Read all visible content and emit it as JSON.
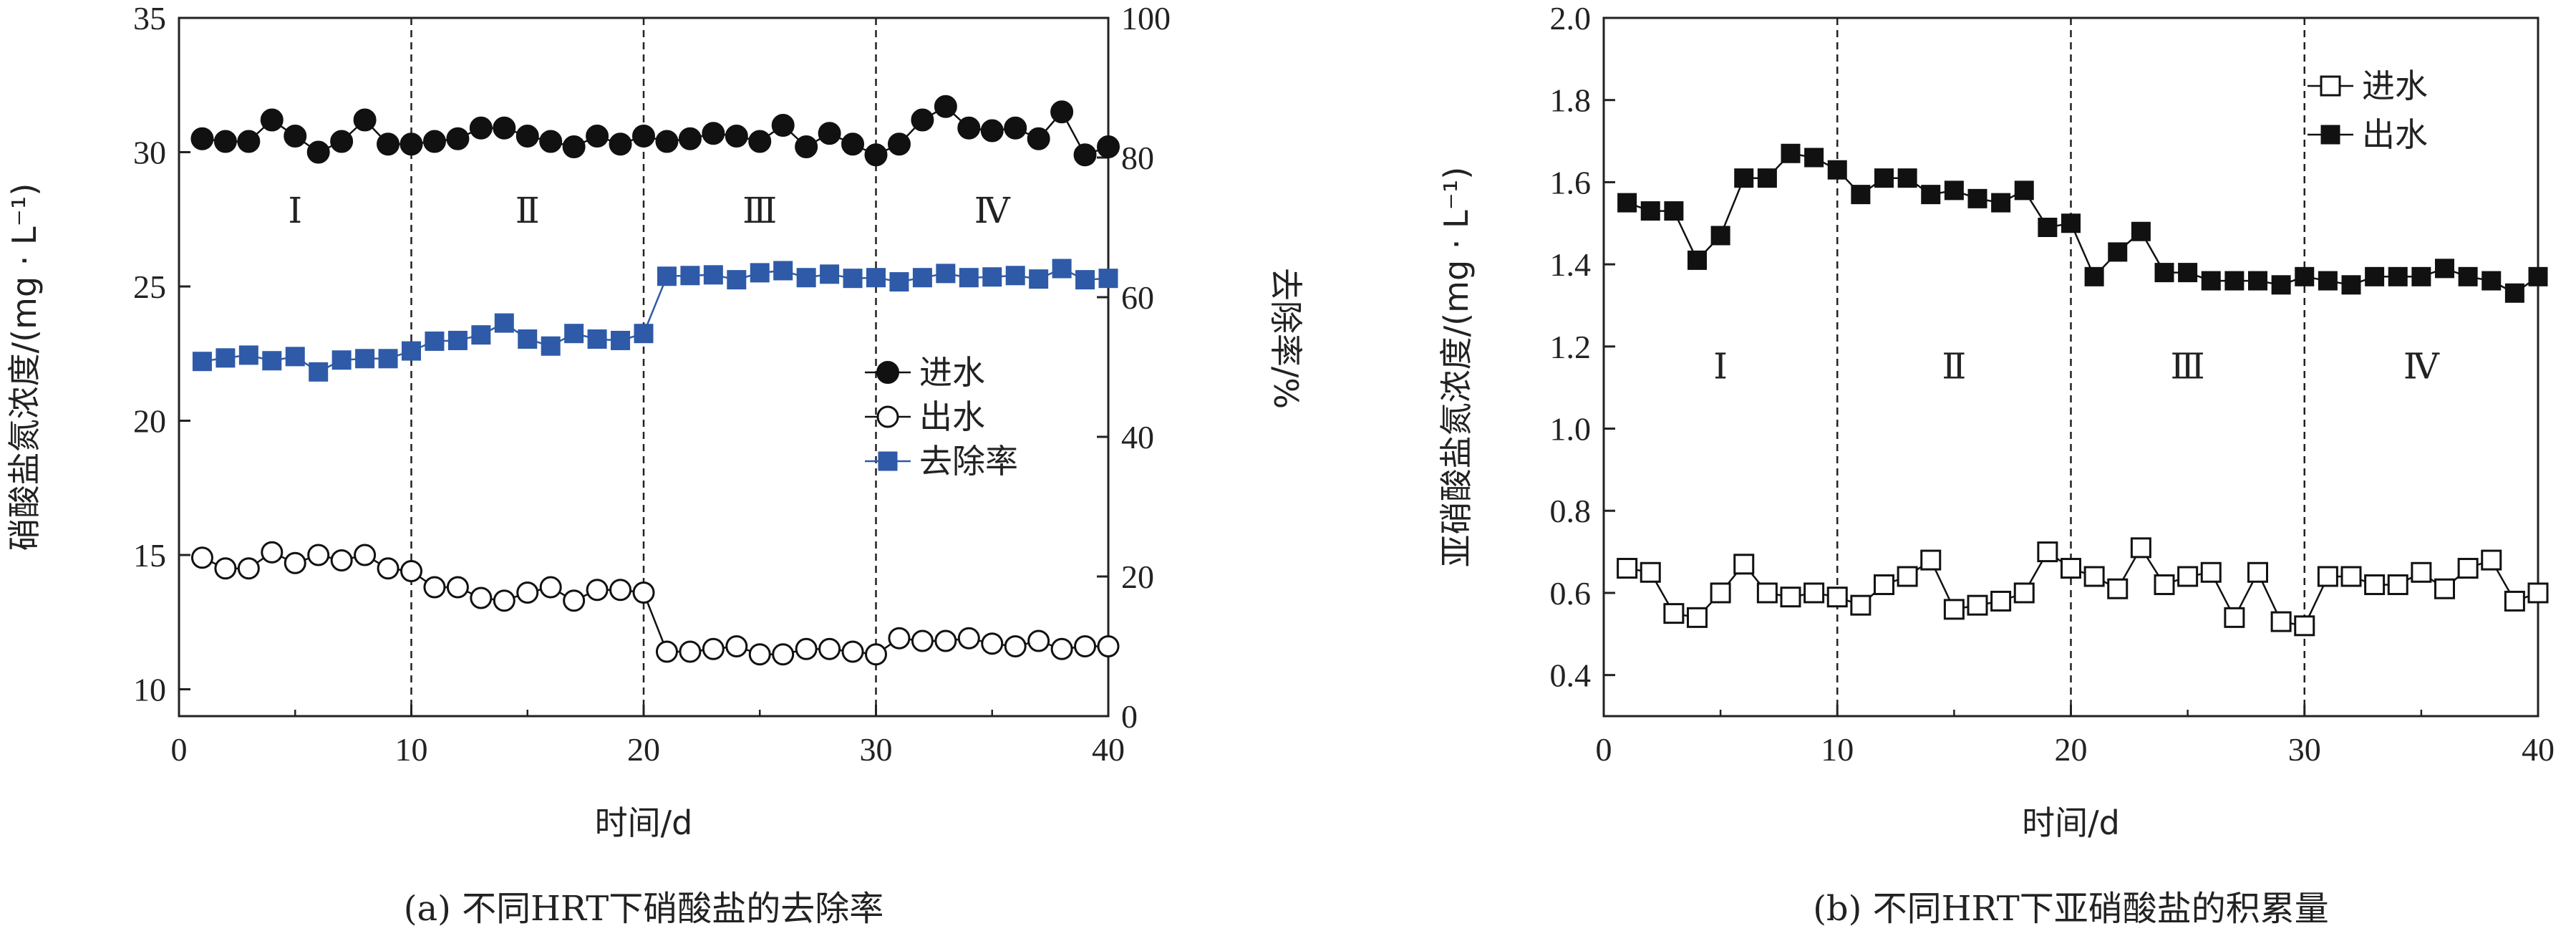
{
  "chart_data": [
    {
      "type": "line",
      "title": "",
      "caption": "(a) 不同HRT下硝酸盐的去除率",
      "xlabel": "时间/d",
      "ylabel": "硝酸盐氮浓度/(mg · L⁻¹)",
      "ylabel_right": "去除率/%",
      "xlim": [
        0,
        40
      ],
      "ylim": [
        9,
        35
      ],
      "ylim_right": [
        0,
        100
      ],
      "xticks": [
        "0",
        "10",
        "20",
        "30",
        "40"
      ],
      "yticks": [
        "10",
        "15",
        "20",
        "25",
        "30",
        "35"
      ],
      "yticks_right": [
        "0",
        "20",
        "40",
        "60",
        "80",
        "100"
      ],
      "phase_lines": [
        10,
        20,
        30
      ],
      "phase_labels": [
        "Ⅰ",
        "Ⅱ",
        "Ⅲ",
        "Ⅳ"
      ],
      "phase_label_y": 27.8,
      "x": [
        1,
        2,
        3,
        4,
        5,
        6,
        7,
        8,
        9,
        10,
        11,
        12,
        13,
        14,
        15,
        16,
        17,
        18,
        19,
        20,
        21,
        22,
        23,
        24,
        25,
        26,
        27,
        28,
        29,
        30,
        31,
        32,
        33,
        34,
        35,
        36,
        37,
        38,
        39,
        40
      ],
      "series": [
        {
          "name": "进水",
          "axis": "left",
          "marker": "filled-circle",
          "values": [
            30.5,
            30.4,
            30.4,
            31.2,
            30.6,
            30.0,
            30.4,
            31.2,
            30.3,
            30.3,
            30.4,
            30.5,
            30.9,
            30.9,
            30.6,
            30.4,
            30.2,
            30.6,
            30.3,
            30.6,
            30.4,
            30.5,
            30.7,
            30.6,
            30.4,
            31.0,
            30.2,
            30.7,
            30.3,
            29.9,
            30.3,
            31.2,
            31.7,
            30.9,
            30.8,
            30.9,
            30.5,
            31.5,
            29.9,
            30.2
          ]
        },
        {
          "name": "出水",
          "axis": "left",
          "marker": "open-circle",
          "values": [
            14.9,
            14.5,
            14.5,
            15.1,
            14.7,
            15.0,
            14.8,
            15.0,
            14.5,
            14.4,
            13.8,
            13.8,
            13.4,
            13.3,
            13.6,
            13.8,
            13.3,
            13.7,
            13.7,
            13.6,
            11.4,
            11.4,
            11.5,
            11.6,
            11.3,
            11.3,
            11.5,
            11.5,
            11.4,
            11.3,
            11.9,
            11.8,
            11.8,
            11.9,
            11.7,
            11.6,
            11.8,
            11.5,
            11.6,
            11.6
          ]
        },
        {
          "name": "去除率",
          "axis": "right",
          "marker": "filled-square",
          "color": "#2e5aa8",
          "values": [
            50.8,
            51.3,
            51.7,
            50.9,
            51.5,
            49.3,
            51.0,
            51.2,
            51.2,
            52.3,
            53.7,
            53.8,
            54.6,
            56.3,
            54.0,
            53.0,
            54.8,
            54.0,
            53.8,
            54.8,
            63.0,
            63.1,
            63.2,
            62.5,
            63.5,
            63.8,
            62.8,
            63.3,
            62.7,
            62.8,
            62.2,
            62.8,
            63.4,
            62.8,
            62.9,
            63.1,
            62.6,
            64.1,
            62.5,
            62.7
          ]
        }
      ],
      "legend": {
        "position": "right-middle",
        "entries": [
          "进水",
          "出水",
          "去除率"
        ]
      }
    },
    {
      "type": "line",
      "title": "",
      "caption": "(b) 不同HRT下亚硝酸盐的积累量",
      "xlabel": "时间/d",
      "ylabel": "亚硝酸盐氮浓度/(mg · L⁻¹)",
      "xlim": [
        0,
        40
      ],
      "ylim": [
        0.3,
        2.0
      ],
      "xticks": [
        "0",
        "10",
        "20",
        "30",
        "40"
      ],
      "yticks": [
        "0.4",
        "0.6",
        "0.8",
        "1.0",
        "1.2",
        "1.4",
        "1.6",
        "1.8",
        "2.0"
      ],
      "phase_lines": [
        10,
        20,
        30
      ],
      "phase_labels": [
        "Ⅰ",
        "Ⅱ",
        "Ⅲ",
        "Ⅳ"
      ],
      "phase_label_y": 1.15,
      "x": [
        1,
        2,
        3,
        4,
        5,
        6,
        7,
        8,
        9,
        10,
        11,
        12,
        13,
        14,
        15,
        16,
        17,
        18,
        19,
        20,
        21,
        22,
        23,
        24,
        25,
        26,
        27,
        28,
        29,
        30,
        31,
        32,
        33,
        34,
        35,
        36,
        37,
        38,
        39,
        40
      ],
      "series": [
        {
          "name": "进水",
          "marker": "open-square",
          "values": [
            0.66,
            0.65,
            0.55,
            0.54,
            0.6,
            0.67,
            0.6,
            0.59,
            0.6,
            0.59,
            0.57,
            0.62,
            0.64,
            0.68,
            0.56,
            0.57,
            0.58,
            0.6,
            0.7,
            0.66,
            0.64,
            0.61,
            0.71,
            0.62,
            0.64,
            0.65,
            0.54,
            0.65,
            0.53,
            0.52,
            0.64,
            0.64,
            0.62,
            0.62,
            0.65,
            0.61,
            0.66,
            0.68,
            0.58,
            0.6
          ]
        },
        {
          "name": "出水",
          "marker": "filled-square",
          "values": [
            1.55,
            1.53,
            1.53,
            1.41,
            1.47,
            1.61,
            1.61,
            1.67,
            1.66,
            1.63,
            1.57,
            1.61,
            1.61,
            1.57,
            1.58,
            1.56,
            1.55,
            1.58,
            1.49,
            1.5,
            1.37,
            1.43,
            1.48,
            1.38,
            1.38,
            1.36,
            1.36,
            1.36,
            1.35,
            1.37,
            1.36,
            1.35,
            1.37,
            1.37,
            1.37,
            1.39,
            1.37,
            1.36,
            1.33,
            1.37
          ]
        }
      ],
      "legend": {
        "position": "top-right",
        "entries": [
          "进水",
          "出水"
        ]
      }
    }
  ]
}
